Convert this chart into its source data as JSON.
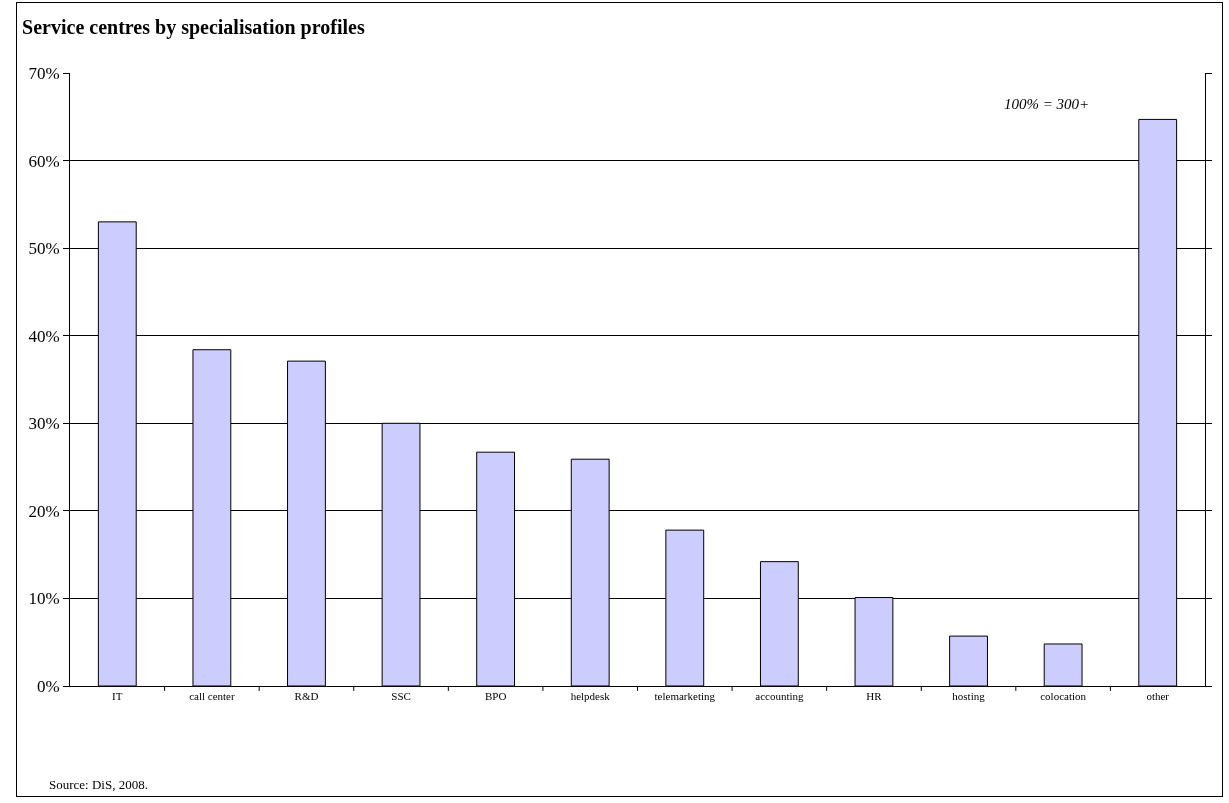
{
  "chart_data": {
    "type": "bar",
    "title": "Service centres by specialisation profiles",
    "categories": [
      "IT",
      "call center",
      "R&D",
      "SSC",
      "BPO",
      "helpdesk",
      "telemarketing",
      "accounting",
      "HR",
      "hosting",
      "colocation",
      "other"
    ],
    "values": [
      53.0,
      38.4,
      37.1,
      30.0,
      26.7,
      25.9,
      17.8,
      14.2,
      10.1,
      5.7,
      4.8,
      64.7
    ],
    "color": "#ccccff",
    "ylim": [
      0,
      70
    ],
    "yticks": [
      {
        "value": 0,
        "label": "0%"
      },
      {
        "value": 10,
        "label": "10%"
      },
      {
        "value": 20,
        "label": "20%"
      },
      {
        "value": 30,
        "label": "30%"
      },
      {
        "value": 40,
        "label": "40%"
      },
      {
        "value": 50,
        "label": "50%"
      },
      {
        "value": 60,
        "label": "60%"
      },
      {
        "value": 70,
        "label": "70%"
      }
    ],
    "grid": "y",
    "annotations": [
      "100% = 300+",
      "Source: DiS, 2008."
    ]
  }
}
